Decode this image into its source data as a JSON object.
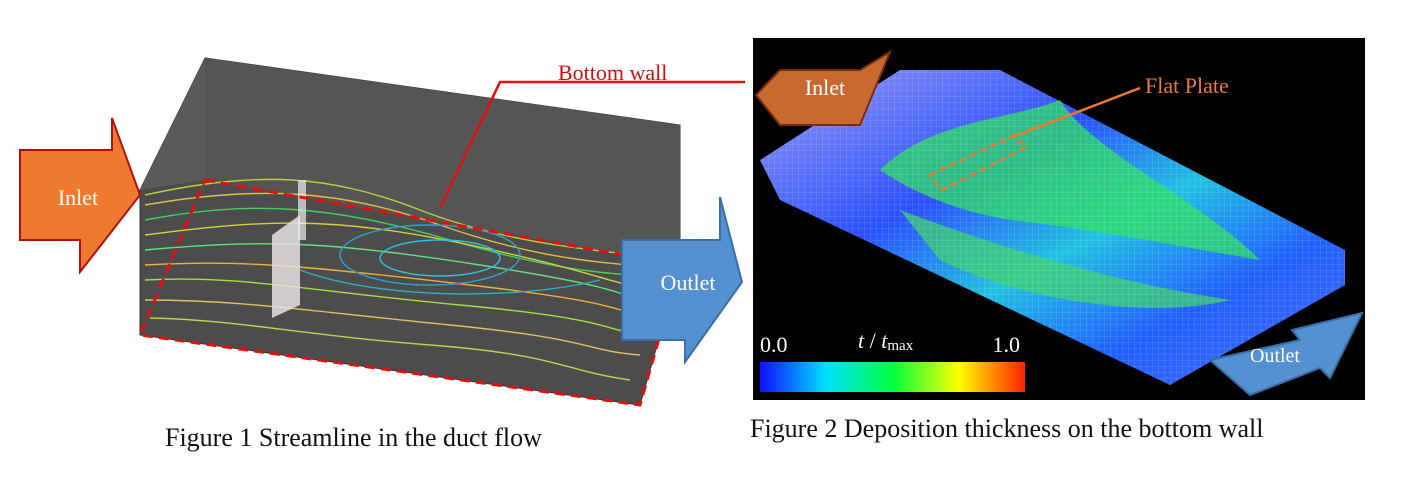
{
  "figure1": {
    "callout": "Bottom wall",
    "inlet": "Inlet",
    "outlet": "Outlet",
    "caption": "Figure 1 Streamline in the duct flow"
  },
  "figure2": {
    "callout": "Flat Plate",
    "inlet": "Inlet",
    "outlet": "Outlet",
    "colorbar": {
      "min": "0.0",
      "max": "1.0",
      "symbol": "t",
      "separator": " / ",
      "symbol2": "t",
      "subscript": "max"
    },
    "caption": "Figure 2 Deposition thickness on the bottom wall"
  }
}
